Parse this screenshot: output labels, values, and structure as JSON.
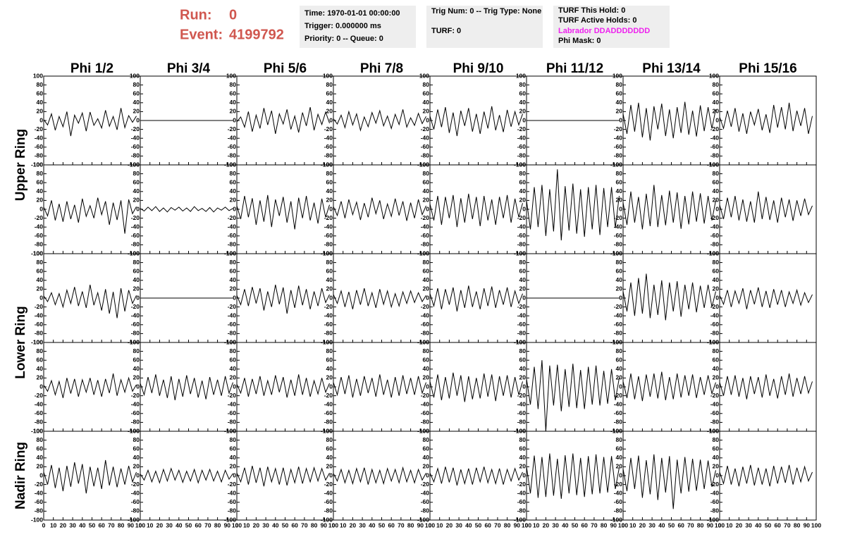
{
  "header": {
    "run_label": "Run:",
    "run": "0",
    "event_label": "Event:",
    "event": "4199792",
    "boxes": [
      [
        "Time: 1970-01-01 00:00:00",
        "Trigger: 0.000000 ms",
        "Priority: 0 -- Queue: 0"
      ],
      [
        "Trig Num: 0 -- Trig Type: None",
        "TURF: 0"
      ],
      [
        "TURF This Hold: 0",
        "TURF Active Holds: 0",
        "Labrador DDADDDDDDD",
        "Phi Mask: 0"
      ]
    ]
  },
  "chart_data": {
    "type": "line",
    "columns": [
      "Phi 1/2",
      "Phi 3/4",
      "Phi 5/6",
      "Phi 7/8",
      "Phi 9/10",
      "Phi 11/12",
      "Phi 13/14",
      "Phi 15/16"
    ],
    "rings": [
      "Upper Ring",
      "Lower Ring",
      "Nadir Ring"
    ],
    "color": "#000000",
    "x": [
      0,
      4,
      8,
      12,
      16,
      20,
      24,
      28,
      32,
      36,
      40,
      44,
      48,
      52,
      56,
      60,
      64,
      68,
      72,
      76,
      80,
      84,
      88,
      92,
      96
    ],
    "xlim": [
      0,
      100
    ],
    "xticks": [
      0,
      10,
      20,
      30,
      40,
      50,
      60,
      70,
      80,
      90,
      100
    ],
    "ylim": [
      -100,
      100
    ],
    "yticks": [
      -100,
      -80,
      -60,
      -40,
      -20,
      0,
      20,
      40,
      60,
      80,
      100
    ],
    "panels": [
      [
        [
          2,
          -10,
          15,
          -22,
          9,
          -14,
          20,
          -35,
          12,
          -6,
          17,
          -24,
          19,
          -11,
          4,
          -17,
          23,
          -13,
          9,
          -21,
          28,
          -16,
          11,
          -4,
          10
        ],
        [
          0,
          0,
          0,
          0,
          0,
          0,
          0,
          0,
          0,
          0,
          0,
          0,
          0,
          0,
          0,
          0,
          0,
          0,
          0,
          0,
          0,
          0,
          0,
          0,
          0
        ],
        [
          -3,
          8,
          -15,
          20,
          -25,
          12,
          -18,
          28,
          -10,
          22,
          -30,
          15,
          -8,
          25,
          -20,
          10,
          -27,
          18,
          -12,
          30,
          -22,
          14,
          -9,
          19,
          -6
        ],
        [
          4,
          -8,
          12,
          -16,
          20,
          -10,
          15,
          -22,
          8,
          -14,
          18,
          -6,
          22,
          -12,
          10,
          -18,
          14,
          -9,
          25,
          -15,
          6,
          -11,
          16,
          -7,
          9
        ],
        [
          10,
          -20,
          25,
          -15,
          30,
          -28,
          18,
          -35,
          22,
          -12,
          28,
          -25,
          15,
          -30,
          20,
          -18,
          32,
          -22,
          12,
          -26,
          24,
          -14,
          20,
          -10,
          15
        ],
        [
          0,
          0,
          0,
          0,
          0,
          0,
          0,
          0,
          0,
          0,
          0,
          0,
          0,
          0,
          0,
          0,
          0,
          0,
          0,
          0,
          0,
          0,
          0,
          0,
          0
        ],
        [
          15,
          -30,
          35,
          -25,
          40,
          -38,
          28,
          -45,
          32,
          -20,
          38,
          -35,
          25,
          -40,
          30,
          -28,
          42,
          -32,
          22,
          -36,
          34,
          -24,
          30,
          -18,
          25
        ],
        [
          8,
          -18,
          22,
          -14,
          28,
          -25,
          16,
          -30,
          20,
          -10,
          26,
          -22,
          14,
          -28,
          35,
          -16,
          30,
          -20,
          40,
          -24,
          22,
          -12,
          28,
          -30,
          10
        ]
      ],
      [
        [
          5,
          -15,
          20,
          -25,
          12,
          -28,
          18,
          -22,
          10,
          -30,
          24,
          -16,
          8,
          -20,
          26,
          -12,
          18,
          -35,
          15,
          -24,
          20,
          -55,
          22,
          -10,
          6
        ],
        [
          2,
          -4,
          5,
          -3,
          6,
          -5,
          3,
          -6,
          4,
          -2,
          5,
          -4,
          3,
          -5,
          6,
          -3,
          2,
          -5,
          4,
          -6,
          3,
          -2,
          5,
          -3,
          2
        ],
        [
          8,
          -22,
          30,
          -18,
          25,
          -35,
          20,
          -28,
          32,
          -40,
          22,
          -15,
          28,
          -30,
          18,
          -45,
          26,
          -20,
          30,
          -25,
          15,
          -32,
          24,
          -18,
          10
        ],
        [
          6,
          -14,
          18,
          -20,
          22,
          -12,
          16,
          -24,
          14,
          -18,
          26,
          -10,
          20,
          -22,
          12,
          -16,
          24,
          -14,
          18,
          -26,
          15,
          -20,
          22,
          -12,
          8
        ],
        [
          12,
          -25,
          30,
          -35,
          28,
          -20,
          32,
          -40,
          25,
          -30,
          35,
          -22,
          28,
          -38,
          30,
          -25,
          22,
          -35,
          28,
          -20,
          32,
          -30,
          24,
          -18,
          14
        ],
        [
          20,
          -45,
          50,
          -40,
          55,
          -60,
          45,
          -50,
          90,
          -70,
          52,
          -48,
          58,
          -55,
          45,
          -62,
          50,
          -45,
          55,
          -58,
          48,
          -40,
          50,
          -42,
          30
        ],
        [
          15,
          -35,
          40,
          -30,
          28,
          -45,
          35,
          -38,
          55,
          -40,
          32,
          -36,
          42,
          -30,
          38,
          -44,
          30,
          -34,
          40,
          -28,
          36,
          -32,
          30,
          -25,
          20
        ],
        [
          10,
          -22,
          26,
          -18,
          30,
          -25,
          22,
          -28,
          18,
          -30,
          40,
          -22,
          28,
          -24,
          20,
          -30,
          26,
          -18,
          22,
          -26,
          20,
          -15,
          24,
          -12,
          8
        ]
      ],
      [
        [
          5,
          -8,
          12,
          -15,
          10,
          -20,
          18,
          -12,
          25,
          -18,
          15,
          -22,
          30,
          -16,
          12,
          -28,
          20,
          -35,
          14,
          -45,
          22,
          -30,
          18,
          -12,
          6
        ],
        [
          0,
          0,
          0,
          0,
          0,
          0,
          0,
          0,
          0,
          0,
          0,
          0,
          0,
          0,
          0,
          0,
          0,
          0,
          0,
          0,
          0,
          0,
          0,
          0,
          0
        ],
        [
          6,
          -15,
          20,
          -18,
          25,
          -12,
          22,
          -28,
          15,
          -20,
          30,
          -14,
          24,
          -35,
          18,
          -22,
          28,
          -16,
          20,
          -25,
          15,
          -18,
          22,
          -10,
          8
        ],
        [
          8,
          -12,
          16,
          -20,
          14,
          -25,
          18,
          -15,
          22,
          -18,
          12,
          -22,
          20,
          -14,
          16,
          -20,
          10,
          -18,
          14,
          -12,
          16,
          -10,
          12,
          -8,
          6
        ],
        [
          10,
          -18,
          22,
          -25,
          20,
          -15,
          24,
          -30,
          18,
          -22,
          28,
          -20,
          15,
          -25,
          22,
          -18,
          26,
          -22,
          18,
          -15,
          24,
          -20,
          16,
          -12,
          10
        ],
        [
          0,
          0,
          0,
          0,
          0,
          0,
          0,
          0,
          0,
          0,
          0,
          0,
          0,
          0,
          0,
          0,
          0,
          0,
          0,
          0,
          0,
          0,
          0,
          0,
          0
        ],
        [
          15,
          -30,
          35,
          -40,
          45,
          -35,
          55,
          -45,
          30,
          -38,
          40,
          -50,
          35,
          -30,
          38,
          -42,
          30,
          -25,
          35,
          -32,
          28,
          -22,
          30,
          -20,
          15
        ],
        [
          6,
          -14,
          18,
          -20,
          16,
          -12,
          22,
          -25,
          18,
          -14,
          24,
          -20,
          16,
          -22,
          20,
          -15,
          18,
          -20,
          14,
          -12,
          18,
          -16,
          12,
          -10,
          8
        ]
      ],
      [
        [
          4,
          -10,
          14,
          -18,
          12,
          -25,
          20,
          -15,
          18,
          -22,
          16,
          -12,
          20,
          -18,
          15,
          -22,
          18,
          -14,
          30,
          -20,
          16,
          -12,
          20,
          -10,
          5
        ],
        [
          8,
          -18,
          22,
          -14,
          28,
          -20,
          16,
          -25,
          24,
          -30,
          18,
          -22,
          26,
          -16,
          20,
          -24,
          14,
          -28,
          22,
          -18,
          16,
          -20,
          24,
          -14,
          10
        ],
        [
          6,
          -14,
          20,
          -22,
          18,
          -16,
          24,
          -20,
          14,
          -18,
          26,
          -12,
          22,
          -24,
          16,
          -20,
          28,
          -18,
          20,
          -22,
          14,
          -16,
          20,
          -12,
          8
        ],
        [
          10,
          -18,
          22,
          -16,
          26,
          -24,
          18,
          -20,
          24,
          -14,
          20,
          -22,
          28,
          -18,
          16,
          -24,
          22,
          -20,
          26,
          -16,
          20,
          -18,
          24,
          -14,
          10
        ],
        [
          12,
          -24,
          28,
          -30,
          22,
          -26,
          32,
          -20,
          26,
          -34,
          24,
          -28,
          20,
          -26,
          30,
          -22,
          28,
          -32,
          24,
          -20,
          26,
          -24,
          22,
          -18,
          12
        ],
        [
          18,
          -40,
          45,
          -50,
          60,
          -100,
          48,
          -42,
          50,
          -55,
          40,
          -45,
          52,
          -48,
          38,
          -50,
          45,
          -40,
          48,
          -42,
          36,
          -38,
          40,
          -30,
          20
        ],
        [
          12,
          -25,
          30,
          -28,
          24,
          -32,
          28,
          -22,
          30,
          -26,
          34,
          -30,
          22,
          -28,
          30,
          -24,
          26,
          -20,
          28,
          -25,
          22,
          -18,
          26,
          -15,
          10
        ],
        [
          10,
          -20,
          24,
          -18,
          26,
          -22,
          20,
          -28,
          24,
          -16,
          22,
          -24,
          28,
          -20,
          18,
          -26,
          24,
          -18,
          30,
          -22,
          20,
          -16,
          24,
          -14,
          12
        ]
      ],
      [
        [
          8,
          -20,
          24,
          -28,
          18,
          -35,
          22,
          -25,
          30,
          -18,
          26,
          -40,
          20,
          -24,
          18,
          -30,
          35,
          -22,
          20,
          -26,
          16,
          -20,
          22,
          -14,
          8
        ],
        [
          4,
          -10,
          12,
          -14,
          10,
          -16,
          14,
          -12,
          16,
          -10,
          12,
          -15,
          10,
          -12,
          14,
          -16,
          12,
          -10,
          14,
          -12,
          10,
          -14,
          12,
          -8,
          5
        ],
        [
          6,
          -14,
          18,
          -20,
          22,
          -16,
          18,
          -24,
          20,
          -14,
          16,
          -20,
          18,
          -22,
          14,
          -16,
          20,
          -18,
          16,
          -14,
          18,
          -12,
          16,
          -10,
          6
        ],
        [
          5,
          -12,
          14,
          -16,
          12,
          -18,
          16,
          -14,
          18,
          -20,
          14,
          -16,
          12,
          -18,
          16,
          -12,
          14,
          -16,
          18,
          -14,
          12,
          -16,
          14,
          -10,
          6
        ],
        [
          6,
          -14,
          16,
          -18,
          20,
          -15,
          18,
          -22,
          14,
          -18,
          16,
          -20,
          18,
          -14,
          20,
          -16,
          14,
          -18,
          16,
          -20,
          14,
          -12,
          16,
          -10,
          8
        ],
        [
          20,
          -40,
          45,
          -50,
          42,
          -48,
          50,
          -45,
          38,
          -52,
          46,
          -40,
          50,
          -44,
          40,
          -48,
          44,
          -42,
          48,
          -40,
          42,
          -38,
          44,
          -30,
          18
        ],
        [
          15,
          -35,
          40,
          -30,
          45,
          -50,
          35,
          -42,
          48,
          -55,
          40,
          -38,
          44,
          -75,
          36,
          -40,
          42,
          -36,
          38,
          -34,
          36,
          -30,
          34,
          -25,
          12
        ],
        [
          8,
          -18,
          22,
          -20,
          16,
          -24,
          20,
          -18,
          24,
          -22,
          18,
          -20,
          16,
          -24,
          22,
          -18,
          20,
          -16,
          24,
          -20,
          18,
          -14,
          20,
          -12,
          8
        ]
      ]
    ]
  }
}
